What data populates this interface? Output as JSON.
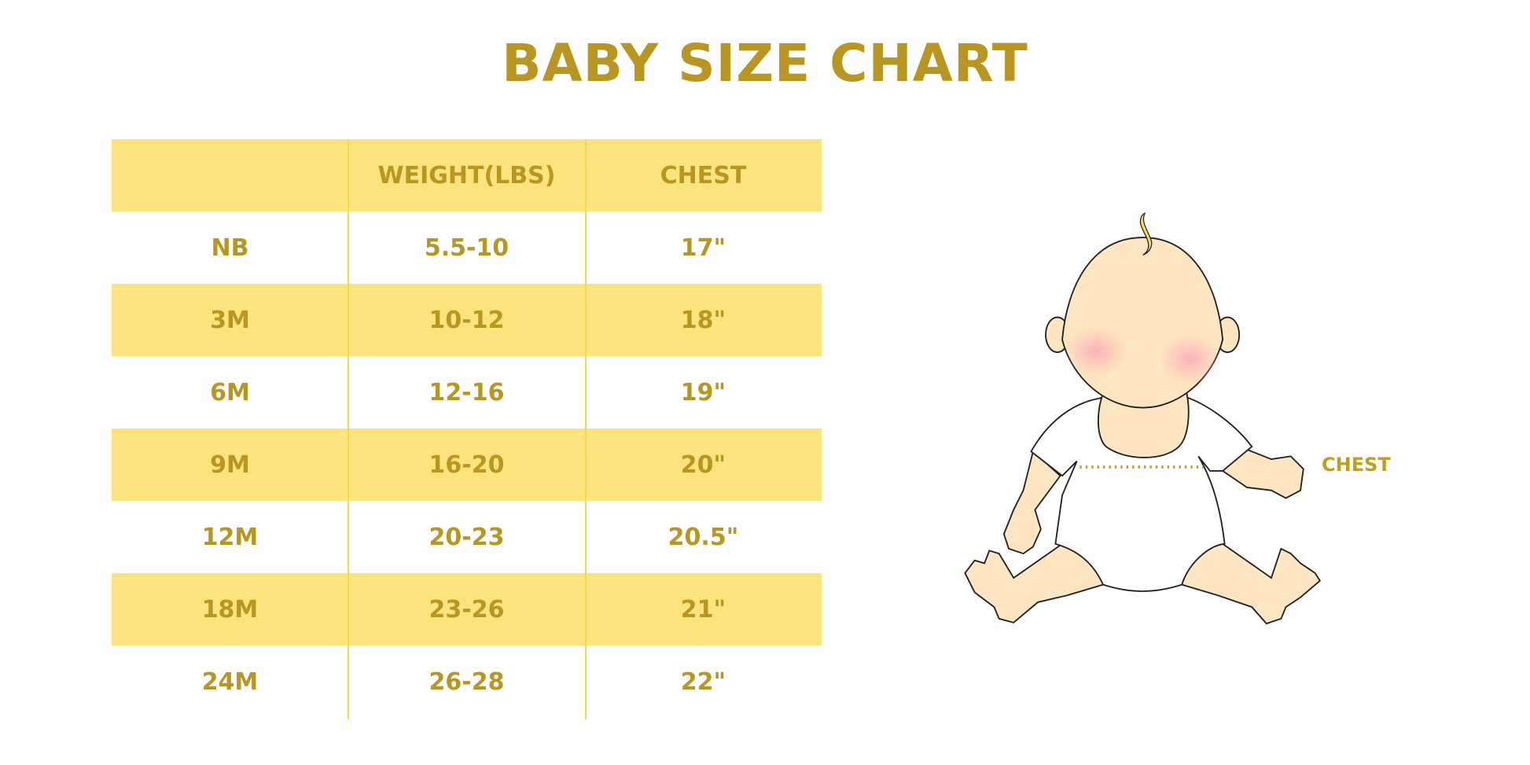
{
  "title": "BABY SIZE CHART",
  "table": {
    "headers": [
      "",
      "WEIGHT(LBS)",
      "CHEST"
    ],
    "rows": [
      [
        "NB",
        "5.5-10",
        "17\""
      ],
      [
        "3M",
        "10-12",
        "18\""
      ],
      [
        "6M",
        "12-16",
        "19\""
      ],
      [
        "9M",
        "16-20",
        "20\""
      ],
      [
        "12M",
        "20-23",
        "20.5\""
      ],
      [
        "18M",
        "23-26",
        "21\""
      ],
      [
        "24M",
        "26-28",
        "22\""
      ]
    ]
  },
  "illustration": {
    "chest_label": "CHEST",
    "icon": "baby-illustration"
  },
  "colors": {
    "text": "#b8961f",
    "band": "#fbe47d",
    "divider": "#f6d84a",
    "skin": "#fde6c1"
  }
}
